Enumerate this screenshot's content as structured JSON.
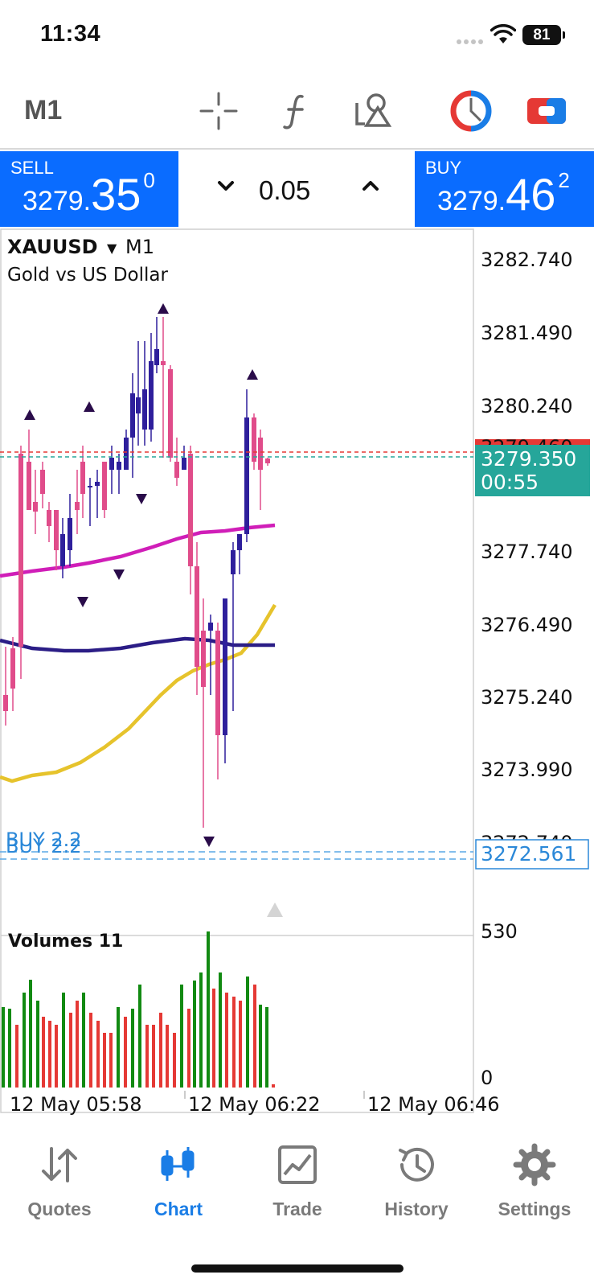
{
  "status_bar": {
    "time": "11:34",
    "battery": "81"
  },
  "toolbar": {
    "timeframe": "M1",
    "icons": [
      "crosshair-icon",
      "indicators-icon",
      "objects-icon",
      "one-click-trading-icon",
      "toggle-icon"
    ]
  },
  "trade": {
    "sell_label": "SELL",
    "sell_price_small": "3279.",
    "sell_price_big": "35",
    "sell_price_sup": "0",
    "buy_label": "BUY",
    "buy_price_small": "3279.",
    "buy_price_big": "46",
    "buy_price_sup": "2",
    "volume": "0.05"
  },
  "chart": {
    "symbol": "XAUUSD",
    "timeframe": "M1",
    "description": "Gold vs US Dollar",
    "price_labels": [
      "3282.740",
      "3281.490",
      "3280.240",
      "3277.740",
      "3276.490",
      "3275.240",
      "3273.990",
      "3272.740"
    ],
    "hidden_label": "3279.460",
    "current_price": "3279.350",
    "countdown": "00:55",
    "order_label": "BUY 2.2",
    "order_price": "3272.561",
    "volumes_label": "Volumes 11",
    "volume_max": "530",
    "volume_min": "0",
    "time_labels": [
      "12 May 05:58",
      "12 May 06:22",
      "12 May 06:46"
    ],
    "colors": {
      "bull": "#2e1f9c",
      "bear": "#e04c8a",
      "ma_fast": "#d01eb8",
      "ma_mid": "#2b1d86",
      "ma_slow": "#e6c32c",
      "bid_tag": "#26a69a",
      "ask_line": "#e53935"
    }
  },
  "nav": [
    {
      "label": "Quotes",
      "icon": "quotes-icon",
      "active": false
    },
    {
      "label": "Chart",
      "icon": "chart-icon",
      "active": true
    },
    {
      "label": "Trade",
      "icon": "trade-icon",
      "active": false
    },
    {
      "label": "History",
      "icon": "history-icon",
      "active": false
    },
    {
      "label": "Settings",
      "icon": "settings-icon",
      "active": false
    }
  ]
}
